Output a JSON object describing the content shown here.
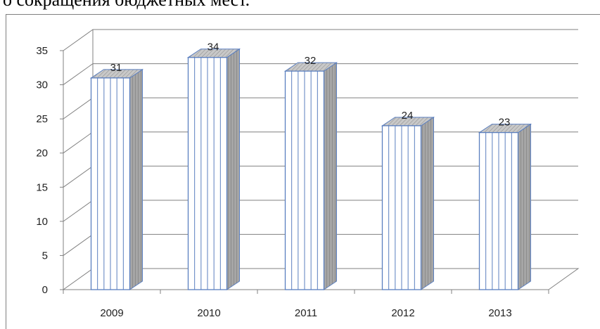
{
  "caption": "о сокращения бюджетных мест.",
  "chart_data": {
    "type": "bar",
    "style": "3d-column",
    "categories": [
      "2009",
      "2010",
      "2011",
      "2012",
      "2013"
    ],
    "values": [
      31,
      34,
      32,
      24,
      23
    ],
    "data_labels": [
      "31",
      "34",
      "32",
      "24",
      "23"
    ],
    "y_ticks": [
      "0",
      "5",
      "10",
      "15",
      "20",
      "25",
      "30",
      "35"
    ],
    "ylim": [
      0,
      35
    ],
    "grid": true,
    "legend": "none",
    "colors": {
      "bar_front": "#ffffff",
      "bar_stripe": "#5b7fbf",
      "bar_side": "#a6a6a6",
      "bar_top": "#bfbfbf",
      "grid": "#808080"
    }
  }
}
